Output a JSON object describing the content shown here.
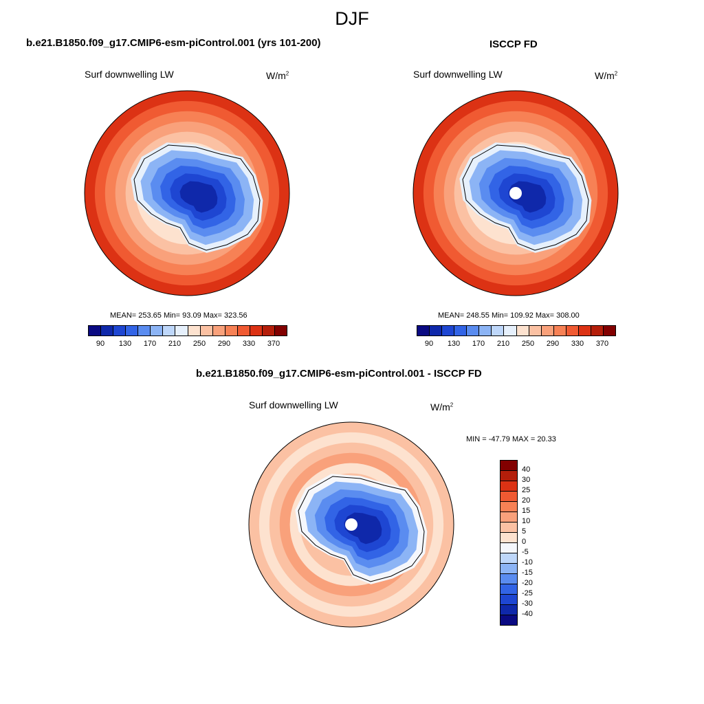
{
  "figure": {
    "title": "DJF"
  },
  "panels": [
    {
      "title": "b.e21.B1850.f09_g17.CMIP6-esm-piControl.001 (yrs 101-200)",
      "variable": "Surf downwelling LW",
      "units_base": "W/m",
      "units_exp": "2",
      "stats": "MEAN= 253.65  Min=  93.09  Max= 323.56",
      "pole_hole": false
    },
    {
      "title": "ISCCP FD",
      "variable": "Surf downwelling LW",
      "units_base": "W/m",
      "units_exp": "2",
      "stats": "MEAN= 248.55  Min= 109.92  Max= 308.00",
      "pole_hole": true
    },
    {
      "title": "b.e21.B1850.f09_g17.CMIP6-esm-piControl.001 - ISCCP FD",
      "variable": "Surf downwelling LW",
      "units_base": "W/m",
      "units_exp": "2",
      "stats": "MIN = -47.79 MAX =  20.33",
      "pole_hole": true
    }
  ],
  "abs_colorbar": {
    "colors": [
      "#0a0a82",
      "#0f28aa",
      "#1e46d2",
      "#3264e6",
      "#5a8cf0",
      "#8cb4f5",
      "#bed7fa",
      "#e6f0fc",
      "#fde2cf",
      "#fbc1a3",
      "#f9a17b",
      "#f78155",
      "#f05a32",
      "#dc3214",
      "#b41e0a",
      "#820000"
    ],
    "tick_labels": [
      "90",
      "130",
      "170",
      "210",
      "250",
      "290",
      "330",
      "370"
    ]
  },
  "diff_colorbar": {
    "colors": [
      "#820000",
      "#b41e0a",
      "#dc3214",
      "#f05a32",
      "#f78155",
      "#f9a17b",
      "#fbc1a3",
      "#fde2cf",
      "#f5f7fc",
      "#bed7fa",
      "#8cb4f5",
      "#5a8cf0",
      "#3264e6",
      "#1e46d2",
      "#0f28aa",
      "#0a0a82"
    ],
    "tick_labels": [
      "40",
      "30",
      "25",
      "20",
      "15",
      "10",
      "5",
      "0",
      "-5",
      "-10",
      "-15",
      "-20",
      "-25",
      "-30",
      "-40"
    ]
  }
}
